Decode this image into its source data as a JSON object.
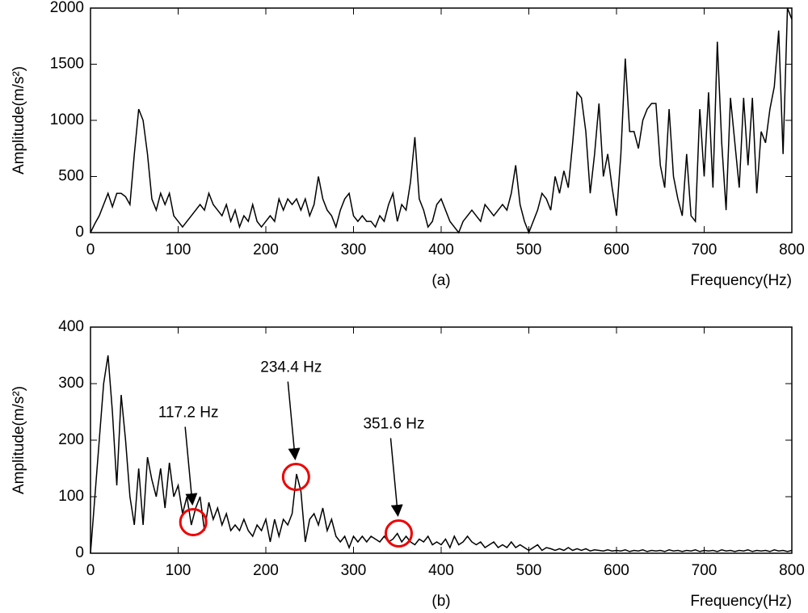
{
  "chart_data": [
    {
      "type": "line",
      "caption": "(a)",
      "x_label": "Frequency(Hz)",
      "y_label": "Amplitude(m/s²)",
      "color": "#000000",
      "xlim": [
        0,
        800
      ],
      "xticks": [
        0,
        100,
        200,
        300,
        400,
        500,
        600,
        700,
        800
      ],
      "ylim": [
        0,
        2000
      ],
      "yticks": [
        0,
        500,
        1000,
        1500,
        2000
      ],
      "grid": false,
      "x": [
        0,
        5,
        10,
        15,
        20,
        25,
        30,
        35,
        40,
        45,
        50,
        55,
        60,
        65,
        70,
        75,
        80,
        85,
        90,
        95,
        100,
        105,
        110,
        115,
        120,
        125,
        130,
        135,
        140,
        145,
        150,
        155,
        160,
        165,
        170,
        175,
        180,
        185,
        190,
        195,
        200,
        205,
        210,
        215,
        220,
        225,
        230,
        235,
        240,
        245,
        250,
        255,
        260,
        265,
        270,
        275,
        280,
        285,
        290,
        295,
        300,
        305,
        310,
        315,
        320,
        325,
        330,
        335,
        340,
        345,
        350,
        355,
        360,
        365,
        370,
        375,
        380,
        385,
        390,
        395,
        400,
        405,
        410,
        415,
        420,
        425,
        430,
        435,
        440,
        445,
        450,
        455,
        460,
        465,
        470,
        475,
        480,
        485,
        490,
        495,
        500,
        505,
        510,
        515,
        520,
        525,
        530,
        535,
        540,
        545,
        550,
        555,
        560,
        565,
        570,
        575,
        580,
        585,
        590,
        595,
        600,
        605,
        610,
        615,
        620,
        625,
        630,
        635,
        640,
        645,
        650,
        655,
        660,
        665,
        670,
        675,
        680,
        685,
        690,
        695,
        700,
        705,
        710,
        715,
        720,
        725,
        730,
        735,
        740,
        745,
        750,
        755,
        760,
        765,
        770,
        775,
        780,
        785,
        790,
        795,
        800
      ],
      "values": [
        0,
        80,
        150,
        250,
        350,
        230,
        350,
        350,
        320,
        250,
        700,
        1100,
        1000,
        700,
        300,
        200,
        350,
        250,
        350,
        150,
        100,
        50,
        100,
        150,
        200,
        250,
        200,
        350,
        250,
        200,
        150,
        250,
        100,
        200,
        50,
        150,
        100,
        250,
        100,
        50,
        100,
        150,
        100,
        300,
        200,
        300,
        250,
        300,
        200,
        300,
        150,
        250,
        500,
        300,
        200,
        150,
        50,
        200,
        300,
        350,
        150,
        100,
        150,
        100,
        100,
        50,
        150,
        100,
        250,
        350,
        100,
        250,
        200,
        450,
        850,
        300,
        200,
        50,
        100,
        250,
        300,
        200,
        100,
        50,
        0,
        100,
        150,
        200,
        150,
        100,
        250,
        200,
        150,
        200,
        250,
        200,
        350,
        600,
        250,
        100,
        0,
        100,
        200,
        350,
        300,
        200,
        500,
        350,
        550,
        400,
        800,
        1250,
        1200,
        900,
        350,
        700,
        1150,
        500,
        700,
        400,
        150,
        700,
        1550,
        900,
        900,
        750,
        1000,
        1100,
        1150,
        1150,
        600,
        400,
        1100,
        500,
        300,
        150,
        700,
        150,
        100,
        1100,
        500,
        1250,
        400,
        1700,
        800,
        200,
        1200,
        800,
        400,
        1200,
        600,
        1200,
        350,
        900,
        800,
        1100,
        1300,
        1800,
        700,
        2000,
        1900
      ]
    },
    {
      "type": "line",
      "caption": "(b)",
      "x_label": "Frequency(Hz)",
      "y_label": "Amplitude(m/s²)",
      "color": "#000000",
      "xlim": [
        0,
        800
      ],
      "xticks": [
        0,
        100,
        200,
        300,
        400,
        500,
        600,
        700,
        800
      ],
      "ylim": [
        0,
        400
      ],
      "yticks": [
        0,
        100,
        200,
        300,
        400
      ],
      "grid": false,
      "x": [
        0,
        5,
        10,
        15,
        20,
        25,
        30,
        35,
        40,
        45,
        50,
        55,
        60,
        65,
        70,
        75,
        80,
        85,
        90,
        95,
        100,
        105,
        110,
        115,
        120,
        125,
        130,
        135,
        140,
        145,
        150,
        155,
        160,
        165,
        170,
        175,
        180,
        185,
        190,
        195,
        200,
        205,
        210,
        215,
        220,
        225,
        230,
        235,
        240,
        245,
        250,
        255,
        260,
        265,
        270,
        275,
        280,
        285,
        290,
        295,
        300,
        305,
        310,
        315,
        320,
        325,
        330,
        335,
        340,
        345,
        350,
        355,
        360,
        365,
        370,
        375,
        380,
        385,
        390,
        395,
        400,
        405,
        410,
        415,
        420,
        425,
        430,
        435,
        440,
        445,
        450,
        455,
        460,
        465,
        470,
        475,
        480,
        485,
        490,
        495,
        500,
        505,
        510,
        515,
        520,
        525,
        530,
        535,
        540,
        545,
        550,
        555,
        560,
        565,
        570,
        575,
        580,
        585,
        590,
        595,
        600,
        605,
        610,
        615,
        620,
        625,
        630,
        635,
        640,
        645,
        650,
        655,
        660,
        665,
        670,
        675,
        680,
        685,
        690,
        695,
        700,
        705,
        710,
        715,
        720,
        725,
        730,
        735,
        740,
        745,
        750,
        755,
        760,
        765,
        770,
        775,
        780,
        785,
        790,
        795,
        800
      ],
      "values": [
        0,
        100,
        200,
        300,
        350,
        250,
        120,
        280,
        200,
        100,
        50,
        150,
        50,
        170,
        130,
        100,
        150,
        80,
        160,
        100,
        120,
        70,
        100,
        50,
        80,
        100,
        40,
        90,
        60,
        80,
        50,
        70,
        40,
        50,
        40,
        60,
        40,
        30,
        50,
        40,
        60,
        20,
        60,
        30,
        60,
        50,
        70,
        140,
        110,
        20,
        60,
        70,
        50,
        80,
        40,
        60,
        30,
        20,
        30,
        10,
        30,
        20,
        30,
        20,
        30,
        25,
        20,
        30,
        20,
        25,
        35,
        20,
        30,
        20,
        15,
        25,
        20,
        30,
        15,
        20,
        15,
        25,
        10,
        30,
        15,
        20,
        30,
        20,
        15,
        20,
        10,
        15,
        20,
        10,
        15,
        10,
        20,
        10,
        15,
        10,
        5,
        10,
        15,
        5,
        10,
        8,
        5,
        8,
        5,
        10,
        5,
        8,
        5,
        8,
        4,
        6,
        5,
        4,
        6,
        4,
        5,
        4,
        6,
        3,
        5,
        4,
        6,
        3,
        5,
        4,
        5,
        3,
        6,
        4,
        5,
        3,
        5,
        4,
        6,
        3,
        5,
        4,
        5,
        3,
        6,
        4,
        5,
        3,
        5,
        4,
        6,
        3,
        5,
        4,
        5,
        3,
        6,
        4,
        5,
        3,
        5
      ],
      "annotations": [
        {
          "label": "117.2 Hz",
          "x": 117.2,
          "y": 55
        },
        {
          "label": "234.4 Hz",
          "x": 234.4,
          "y": 135
        },
        {
          "label": "351.6 Hz",
          "x": 351.6,
          "y": 35
        }
      ]
    }
  ]
}
